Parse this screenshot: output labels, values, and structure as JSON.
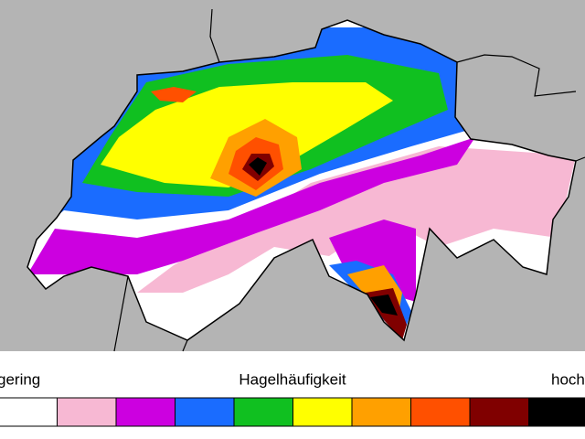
{
  "legend": {
    "low": "gering",
    "title": "Hagelhäufigkeit",
    "high": "hoch",
    "colors": [
      "#ffffff",
      "#f7b8d3",
      "#cc00e0",
      "#1a6cff",
      "#10c020",
      "#ffff00",
      "#ffa000",
      "#ff5000",
      "#800000",
      "#000000"
    ]
  }
}
